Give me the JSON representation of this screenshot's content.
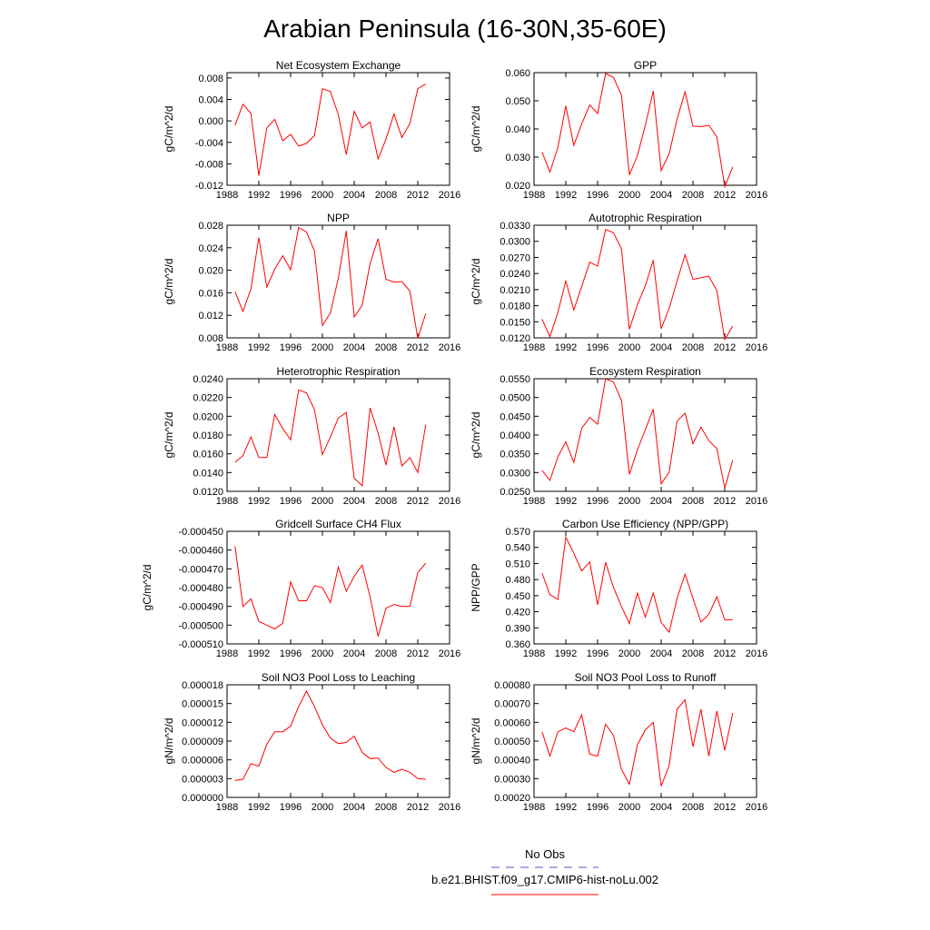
{
  "figure": {
    "title": "Arabian Peninsula (16-30N,35-60E)",
    "legend": [
      {
        "label": "No Obs",
        "color": "#5555cc",
        "dash": true
      },
      {
        "label": "b.e21.BHIST.f09_g17.CMIP6-hist-noLu.002",
        "color": "#ff0000",
        "dash": false
      }
    ]
  },
  "chart_data": [
    {
      "type": "line",
      "title": "Net Ecosystem Exchange",
      "ylabel": "gC/m^2/d",
      "xlim": [
        1988,
        2016
      ],
      "ylim": [
        -0.012,
        0.009
      ],
      "yticks": [
        "0.008",
        "0.004",
        "0.000",
        "-0.004",
        "-0.008",
        "-0.012"
      ],
      "ytick_values": [
        0.008,
        0.004,
        0.0,
        -0.004,
        -0.008,
        -0.012
      ],
      "xticks": [
        "1988",
        "1992",
        "1996",
        "2000",
        "2004",
        "2008",
        "2012",
        "2016"
      ],
      "series": [
        {
          "color": "#ff0000",
          "x": [
            1989,
            1990,
            1991,
            1992,
            1993,
            1994,
            1995,
            1996,
            1997,
            1998,
            1999,
            2000,
            2001,
            2002,
            2003,
            2004,
            2005,
            2006,
            2007,
            2008,
            2009,
            2010,
            2011,
            2012,
            2013
          ],
          "values": [
            -0.0008,
            0.0031,
            0.0014,
            -0.0102,
            -0.0013,
            0.0003,
            -0.0037,
            -0.0025,
            -0.0047,
            -0.0042,
            -0.0027,
            0.006,
            0.0055,
            0.0012,
            -0.0063,
            0.0018,
            -0.0013,
            -0.0002,
            -0.0071,
            -0.0034,
            0.0013,
            -0.0031,
            -0.0005,
            0.006,
            0.0069
          ]
        }
      ]
    },
    {
      "type": "line",
      "title": "GPP",
      "ylabel": "gC/m^2/d",
      "xlim": [
        1988,
        2016
      ],
      "ylim": [
        0.02,
        0.06
      ],
      "yticks": [
        "0.060",
        "0.050",
        "0.040",
        "0.030",
        "0.020"
      ],
      "ytick_values": [
        0.06,
        0.05,
        0.04,
        0.03,
        0.02
      ],
      "xticks": [
        "1988",
        "1992",
        "1996",
        "2000",
        "2004",
        "2008",
        "2012",
        "2016"
      ],
      "series": [
        {
          "color": "#ff0000",
          "x": [
            1989,
            1990,
            1991,
            1992,
            1993,
            1994,
            1995,
            1996,
            1997,
            1998,
            1999,
            2000,
            2001,
            2002,
            2003,
            2004,
            2005,
            2006,
            2007,
            2008,
            2009,
            2010,
            2011,
            2012,
            2013
          ],
          "values": [
            0.0318,
            0.0247,
            0.0335,
            0.0482,
            0.0342,
            0.0418,
            0.0485,
            0.0455,
            0.0597,
            0.0583,
            0.052,
            0.0237,
            0.0305,
            0.0412,
            0.0535,
            0.0252,
            0.0312,
            0.0435,
            0.0532,
            0.041,
            0.0408,
            0.0413,
            0.0372,
            0.0195,
            0.0265
          ]
        }
      ]
    },
    {
      "type": "line",
      "title": "NPP",
      "ylabel": "gC/m^2/d",
      "xlim": [
        1988,
        2016
      ],
      "ylim": [
        0.008,
        0.028
      ],
      "yticks": [
        "0.028",
        "0.024",
        "0.020",
        "0.016",
        "0.012",
        "0.008"
      ],
      "ytick_values": [
        0.028,
        0.024,
        0.02,
        0.016,
        0.012,
        0.008
      ],
      "xticks": [
        "1988",
        "1992",
        "1996",
        "2000",
        "2004",
        "2008",
        "2012",
        "2016"
      ],
      "series": [
        {
          "color": "#ff0000",
          "x": [
            1989,
            1990,
            1991,
            1992,
            1993,
            1994,
            1995,
            1996,
            1997,
            1998,
            1999,
            2000,
            2001,
            2002,
            2003,
            2004,
            2005,
            2006,
            2007,
            2008,
            2009,
            2010,
            2011,
            2012,
            2013
          ],
          "values": [
            0.0162,
            0.0127,
            0.0167,
            0.0258,
            0.017,
            0.0202,
            0.0226,
            0.0201,
            0.0276,
            0.0268,
            0.0234,
            0.0102,
            0.0124,
            0.0186,
            0.027,
            0.0117,
            0.0138,
            0.0212,
            0.0256,
            0.0184,
            0.0179,
            0.018,
            0.0163,
            0.0079,
            0.0123
          ]
        }
      ]
    },
    {
      "type": "line",
      "title": "Autotrophic Respiration",
      "ylabel": "gC/m^2/d",
      "xlim": [
        1988,
        2016
      ],
      "ylim": [
        0.012,
        0.033
      ],
      "yticks": [
        "0.0330",
        "0.0300",
        "0.0270",
        "0.0240",
        "0.0210",
        "0.0180",
        "0.0150",
        "0.0120"
      ],
      "ytick_values": [
        0.033,
        0.03,
        0.027,
        0.024,
        0.021,
        0.018,
        0.015,
        0.012
      ],
      "xticks": [
        "1988",
        "1992",
        "1996",
        "2000",
        "2004",
        "2008",
        "2012",
        "2016"
      ],
      "series": [
        {
          "color": "#ff0000",
          "x": [
            1989,
            1990,
            1991,
            1992,
            1993,
            1994,
            1995,
            1996,
            1997,
            1998,
            1999,
            2000,
            2001,
            2002,
            2003,
            2004,
            2005,
            2006,
            2007,
            2008,
            2009,
            2010,
            2011,
            2012,
            2013
          ],
          "values": [
            0.0155,
            0.0122,
            0.0168,
            0.0226,
            0.0172,
            0.0216,
            0.0261,
            0.0254,
            0.0322,
            0.0316,
            0.0286,
            0.0136,
            0.0182,
            0.0217,
            0.0265,
            0.0137,
            0.0175,
            0.0226,
            0.0275,
            0.0229,
            0.0232,
            0.0235,
            0.0208,
            0.0117,
            0.0142
          ]
        }
      ]
    },
    {
      "type": "line",
      "title": "Heterotrophic Respiration",
      "ylabel": "gC/m^2/d",
      "xlim": [
        1988,
        2016
      ],
      "ylim": [
        0.012,
        0.024
      ],
      "yticks": [
        "0.0240",
        "0.0220",
        "0.0200",
        "0.0180",
        "0.0160",
        "0.0140",
        "0.0120"
      ],
      "ytick_values": [
        0.024,
        0.022,
        0.02,
        0.018,
        0.016,
        0.014,
        0.012
      ],
      "xticks": [
        "1988",
        "1992",
        "1996",
        "2000",
        "2004",
        "2008",
        "2012",
        "2016"
      ],
      "series": [
        {
          "color": "#ff0000",
          "x": [
            1989,
            1990,
            1991,
            1992,
            1993,
            1994,
            1995,
            1996,
            1997,
            1998,
            1999,
            2000,
            2001,
            2002,
            2003,
            2004,
            2005,
            2006,
            2007,
            2008,
            2009,
            2010,
            2011,
            2012,
            2013
          ],
          "values": [
            0.0151,
            0.0158,
            0.0178,
            0.0156,
            0.0156,
            0.0202,
            0.0187,
            0.0175,
            0.0228,
            0.0225,
            0.0207,
            0.0159,
            0.0178,
            0.0198,
            0.0204,
            0.0134,
            0.0126,
            0.0209,
            0.0182,
            0.0148,
            0.0189,
            0.0147,
            0.0156,
            0.014,
            0.0191
          ]
        }
      ]
    },
    {
      "type": "line",
      "title": "Ecosystem Respiration",
      "ylabel": "gC/m^2/d",
      "xlim": [
        1988,
        2016
      ],
      "ylim": [
        0.025,
        0.055
      ],
      "yticks": [
        "0.0550",
        "0.0500",
        "0.0450",
        "0.0400",
        "0.0350",
        "0.0300",
        "0.0250"
      ],
      "ytick_values": [
        0.055,
        0.05,
        0.045,
        0.04,
        0.035,
        0.03,
        0.025
      ],
      "xticks": [
        "1988",
        "1992",
        "1996",
        "2000",
        "2004",
        "2008",
        "2012",
        "2016"
      ],
      "series": [
        {
          "color": "#ff0000",
          "x": [
            1989,
            1990,
            1991,
            1992,
            1993,
            1994,
            1995,
            1996,
            1997,
            1998,
            1999,
            2000,
            2001,
            2002,
            2003,
            2004,
            2005,
            2006,
            2007,
            2008,
            2009,
            2010,
            2011,
            2012,
            2013
          ],
          "values": [
            0.0306,
            0.0279,
            0.0342,
            0.0382,
            0.0327,
            0.0418,
            0.0447,
            0.0429,
            0.055,
            0.0541,
            0.0492,
            0.0295,
            0.036,
            0.0414,
            0.0469,
            0.027,
            0.0301,
            0.0437,
            0.0458,
            0.0377,
            0.0421,
            0.0385,
            0.0364,
            0.0259,
            0.0333
          ]
        }
      ]
    },
    {
      "type": "line",
      "title": "Gridcell Surface CH4 Flux",
      "ylabel": "gC/m^2/d",
      "xlim": [
        1988,
        2016
      ],
      "ylim": [
        -0.00051,
        -0.00045
      ],
      "yticks": [
        "-0.000450",
        "-0.000460",
        "-0.000470",
        "-0.000480",
        "-0.000490",
        "-0.000500",
        "-0.000510"
      ],
      "ytick_values": [
        -0.00045,
        -0.00046,
        -0.00047,
        -0.00048,
        -0.00049,
        -0.0005,
        -0.00051
      ],
      "xticks": [
        "1988",
        "1992",
        "1996",
        "2000",
        "2004",
        "2008",
        "2012",
        "2016"
      ],
      "series": [
        {
          "color": "#ff0000",
          "x": [
            1989,
            1990,
            1991,
            1992,
            1993,
            1994,
            1995,
            1996,
            1997,
            1998,
            1999,
            2000,
            2001,
            2002,
            2003,
            2004,
            2005,
            2006,
            2007,
            2008,
            2009,
            2010,
            2011,
            2012,
            2013
          ],
          "values": [
            -0.000458,
            -0.00049,
            -0.000486,
            -0.000498,
            -0.0005,
            -0.000502,
            -0.000499,
            -0.000477,
            -0.000487,
            -0.000487,
            -0.000479,
            -0.00048,
            -0.000488,
            -0.000469,
            -0.000482,
            -0.000474,
            -0.000468,
            -0.000485,
            -0.000506,
            -0.000491,
            -0.000489,
            -0.00049,
            -0.00049,
            -0.000472,
            -0.000467
          ]
        }
      ]
    },
    {
      "type": "line",
      "title": "Carbon Use Efficiency (NPP/GPP)",
      "ylabel": "NPP/GPP",
      "xlim": [
        1988,
        2016
      ],
      "ylim": [
        0.36,
        0.57
      ],
      "yticks": [
        "0.570",
        "0.540",
        "0.510",
        "0.480",
        "0.450",
        "0.420",
        "0.390",
        "0.360"
      ],
      "ytick_values": [
        0.57,
        0.54,
        0.51,
        0.48,
        0.45,
        0.42,
        0.39,
        0.36
      ],
      "xticks": [
        "1988",
        "1992",
        "1996",
        "2000",
        "2004",
        "2008",
        "2012",
        "2016"
      ],
      "series": [
        {
          "color": "#ff0000",
          "x": [
            1989,
            1990,
            1991,
            1992,
            1993,
            1994,
            1995,
            1996,
            1997,
            1998,
            1999,
            2000,
            2001,
            2002,
            2003,
            2004,
            2005,
            2006,
            2007,
            2008,
            2009,
            2010,
            2011,
            2012,
            2013
          ],
          "values": [
            0.492,
            0.452,
            0.443,
            0.559,
            0.529,
            0.496,
            0.513,
            0.433,
            0.512,
            0.465,
            0.43,
            0.398,
            0.455,
            0.41,
            0.455,
            0.4,
            0.382,
            0.445,
            0.49,
            0.445,
            0.401,
            0.415,
            0.448,
            0.405,
            0.405
          ]
        }
      ]
    },
    {
      "type": "line",
      "title": "Soil NO3 Pool Loss to Leaching",
      "ylabel": "gN/m^2/d",
      "xlim": [
        1988,
        2016
      ],
      "ylim": [
        0.0,
        1.8e-05
      ],
      "yticks": [
        "0.000018",
        "0.000015",
        "0.000012",
        "0.000009",
        "0.000006",
        "0.000003",
        "0.000000"
      ],
      "ytick_values": [
        1.8e-05,
        1.5e-05,
        1.2e-05,
        9e-06,
        6e-06,
        3e-06,
        0.0
      ],
      "xticks": [
        "1988",
        "1992",
        "1996",
        "2000",
        "2004",
        "2008",
        "2012",
        "2016"
      ],
      "series": [
        {
          "color": "#ff0000",
          "x": [
            1989,
            1990,
            1991,
            1992,
            1993,
            1994,
            1995,
            1996,
            1997,
            1998,
            1999,
            2000,
            2001,
            2002,
            2003,
            2004,
            2005,
            2006,
            2007,
            2008,
            2009,
            2010,
            2011,
            2012,
            2013
          ],
          "values": [
            2.7e-06,
            2.9e-06,
            5.4e-06,
            5e-06,
            8.5e-06,
            1.05e-05,
            1.05e-05,
            1.14e-05,
            1.45e-05,
            1.7e-05,
            1.45e-05,
            1.16e-05,
            9.5e-06,
            8.6e-06,
            8.8e-06,
            9.8e-06,
            7.2e-06,
            6.2e-06,
            6.3e-06,
            4.8e-06,
            4e-06,
            4.5e-06,
            4e-06,
            3e-06,
            2.9e-06
          ]
        }
      ]
    },
    {
      "type": "line",
      "title": "Soil NO3 Pool Loss to Runoff",
      "ylabel": "gN/m^2/d",
      "xlim": [
        1988,
        2016
      ],
      "ylim": [
        0.0002,
        0.0008
      ],
      "yticks": [
        "0.00080",
        "0.00070",
        "0.00060",
        "0.00050",
        "0.00040",
        "0.00030",
        "0.00020"
      ],
      "ytick_values": [
        0.0008,
        0.0007,
        0.0006,
        0.0005,
        0.0004,
        0.0003,
        0.0002
      ],
      "xticks": [
        "1988",
        "1992",
        "1996",
        "2000",
        "2004",
        "2008",
        "2012",
        "2016"
      ],
      "series": [
        {
          "color": "#ff0000",
          "x": [
            1989,
            1990,
            1991,
            1992,
            1993,
            1994,
            1995,
            1996,
            1997,
            1998,
            1999,
            2000,
            2001,
            2002,
            2003,
            2004,
            2005,
            2006,
            2007,
            2008,
            2009,
            2010,
            2011,
            2012,
            2013
          ],
          "values": [
            0.00055,
            0.00042,
            0.00055,
            0.00057,
            0.00055,
            0.00064,
            0.00043,
            0.00042,
            0.00059,
            0.00053,
            0.00035,
            0.00027,
            0.00048,
            0.00056,
            0.0006,
            0.00026,
            0.00037,
            0.00067,
            0.00072,
            0.00047,
            0.00067,
            0.00042,
            0.00066,
            0.00045,
            0.00065
          ]
        }
      ]
    }
  ]
}
